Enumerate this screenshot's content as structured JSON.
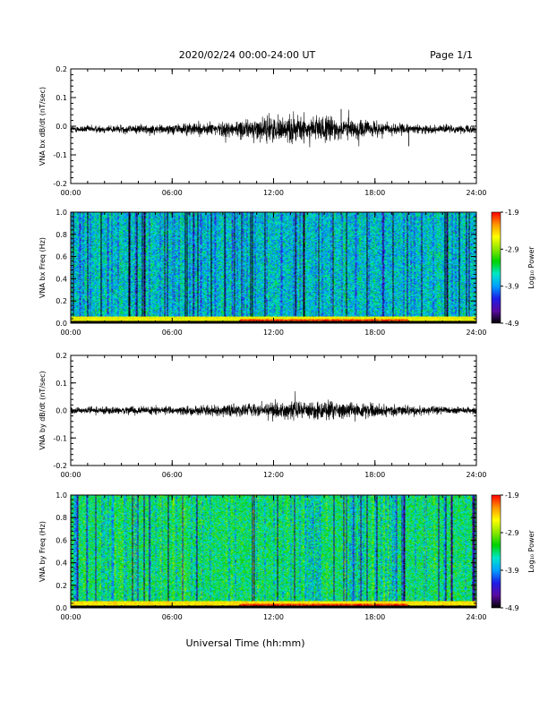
{
  "header": {
    "title": "2020/02/24  00:00-24:00 UT",
    "page": "Page 1/1"
  },
  "footer": {
    "xlabel": "Universal Time (hh:mm)"
  },
  "colors": {
    "trace": "#000000",
    "colormap": [
      "#000000",
      "#5a0aa0",
      "#1e1ee6",
      "#00a0ff",
      "#00e6c8",
      "#00d200",
      "#8ce600",
      "#ffff00",
      "#ff9600",
      "#ff0000"
    ]
  },
  "chart_data": [
    {
      "type": "line",
      "id": "bx-waveform",
      "ylabel": "VNA bx dB/dt (nT/sec)",
      "xlim": [
        "00:00",
        "24:00"
      ],
      "xticks": [
        "00:00",
        "06:00",
        "12:00",
        "18:00",
        "24:00"
      ],
      "ylim": [
        -0.2,
        0.2
      ],
      "yticks": [
        "-0.2",
        "-0.1",
        "0.0",
        "0.1",
        "0.2"
      ],
      "baseline": -0.01,
      "amplitude_by_hour": [
        0.01,
        0.011,
        0.012,
        0.013,
        0.014,
        0.015,
        0.016,
        0.018,
        0.02,
        0.022,
        0.026,
        0.032,
        0.036,
        0.04,
        0.042,
        0.04,
        0.036,
        0.03,
        0.024,
        0.018,
        0.015,
        0.013,
        0.012,
        0.011,
        0.01
      ],
      "spikes": [
        {
          "time": "20:00",
          "value": -0.07
        },
        {
          "time": "16:00",
          "value": 0.06
        }
      ]
    },
    {
      "type": "heatmap",
      "id": "bx-spectrogram",
      "ylabel": "VNA bx Freq (Hz)",
      "xlim": [
        "00:00",
        "24:00"
      ],
      "xticks": [
        "00:00",
        "06:00",
        "12:00",
        "18:00",
        "24:00"
      ],
      "ylim": [
        0.0,
        1.0
      ],
      "yticks": [
        "0.0",
        "0.2",
        "0.4",
        "0.6",
        "0.8",
        "1.0"
      ],
      "colorbar": {
        "label": "Log₁₀ Power",
        "ticks": [
          "-1.9",
          "-2.9",
          "-3.9",
          "-4.9"
        ],
        "range": [
          -4.9,
          -1.9
        ]
      },
      "background_level": -3.7,
      "low_freq_band": {
        "max_freq": 0.05,
        "level": -2.6,
        "peak_level": -2.0,
        "peak_time_range": [
          "10:00",
          "20:00"
        ]
      }
    },
    {
      "type": "line",
      "id": "by-waveform",
      "ylabel": "VNA by dB/dt (nT/sec)",
      "xlim": [
        "00:00",
        "24:00"
      ],
      "xticks": [
        "00:00",
        "06:00",
        "12:00",
        "18:00",
        "24:00"
      ],
      "ylim": [
        -0.2,
        0.2
      ],
      "yticks": [
        "-0.2",
        "-0.1",
        "0.0",
        "0.1",
        "0.2"
      ],
      "baseline": 0.0,
      "amplitude_by_hour": [
        0.01,
        0.011,
        0.012,
        0.012,
        0.013,
        0.013,
        0.014,
        0.014,
        0.016,
        0.018,
        0.02,
        0.022,
        0.025,
        0.028,
        0.03,
        0.03,
        0.028,
        0.025,
        0.022,
        0.018,
        0.015,
        0.013,
        0.012,
        0.011,
        0.01
      ],
      "spikes": []
    },
    {
      "type": "heatmap",
      "id": "by-spectrogram",
      "ylabel": "VNA by Freq (Hz)",
      "xlim": [
        "00:00",
        "24:00"
      ],
      "xticks": [
        "00:00",
        "06:00",
        "12:00",
        "18:00",
        "24:00"
      ],
      "ylim": [
        0.0,
        1.0
      ],
      "yticks": [
        "0.0",
        "0.2",
        "0.4",
        "0.6",
        "0.8",
        "1.0"
      ],
      "colorbar": {
        "label": "Log₁₀ Power",
        "ticks": [
          "-1.9",
          "-2.9",
          "-3.9",
          "-4.9"
        ],
        "range": [
          -4.9,
          -1.9
        ]
      },
      "background_level": -3.4,
      "low_freq_band": {
        "max_freq": 0.05,
        "level": -2.5,
        "peak_level": -2.0,
        "peak_time_range": [
          "10:00",
          "20:00"
        ]
      }
    }
  ]
}
